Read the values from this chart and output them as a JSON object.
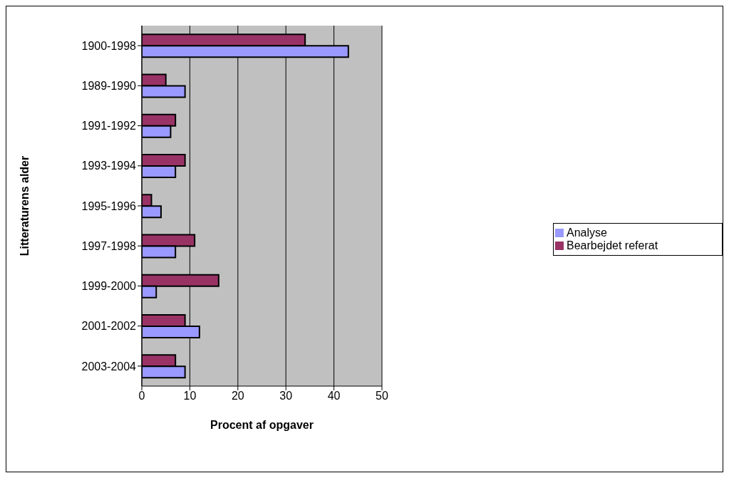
{
  "chart_data": {
    "type": "bar",
    "orientation": "horizontal",
    "xlabel": "Procent af opgaver",
    "ylabel": "Litteraturens alder",
    "categories": [
      "1900-1998",
      "1989-1990",
      "1991-1992",
      "1993-1994",
      "1995-1996",
      "1997-1998",
      "1999-2000",
      "2001-2002",
      "2003-2004"
    ],
    "series": [
      {
        "name": "Bearbejdet referat",
        "color": "#993366",
        "values": [
          34,
          5,
          7,
          9,
          2,
          11,
          16,
          9,
          7
        ]
      },
      {
        "name": "Analyse",
        "color": "#9999ff",
        "values": [
          43,
          9,
          6,
          7,
          4,
          7,
          3,
          12,
          9
        ]
      }
    ],
    "xlim": [
      0,
      50
    ],
    "xticks": [
      0,
      10,
      20,
      30,
      40,
      50
    ],
    "grid": "x",
    "legend": "right"
  }
}
